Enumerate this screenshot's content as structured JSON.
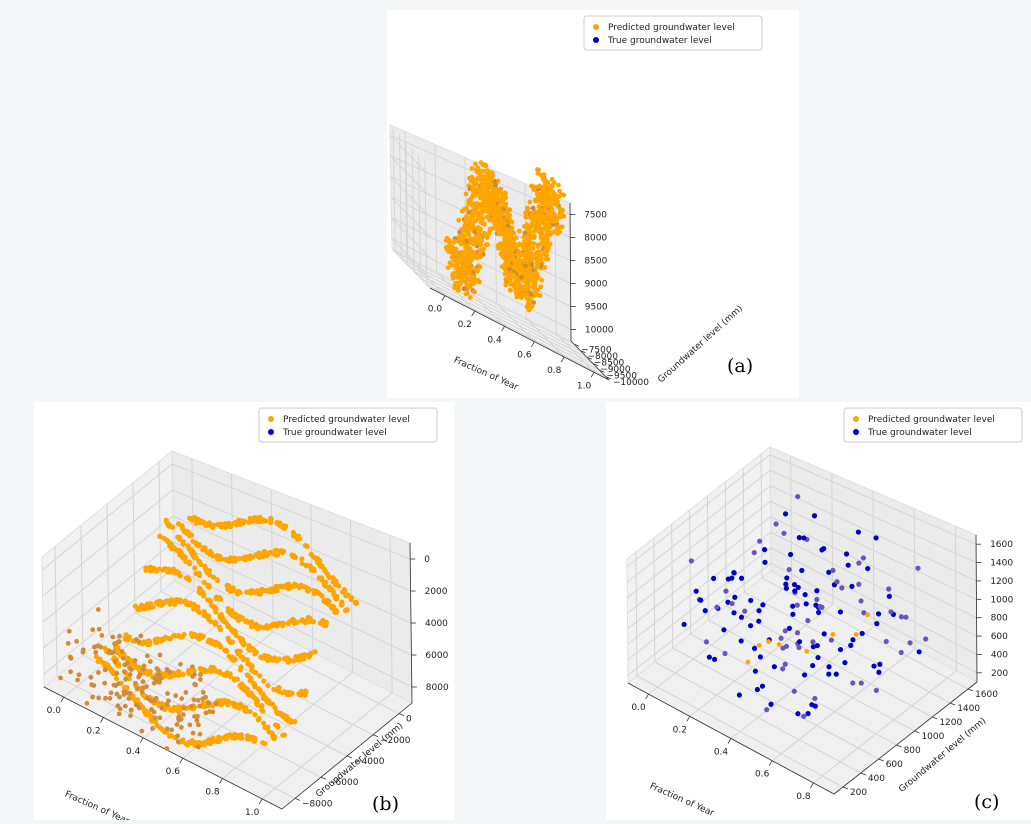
{
  "chart_data": [
    {
      "type": "scatter",
      "label": "(a)",
      "xlabel": "Fraction of Year",
      "ylabel": "Groundwater level (mm)",
      "x_ticks": [
        "0.0",
        "0.2",
        "0.4",
        "0.6",
        "0.8",
        "1.0"
      ],
      "y_ticks": [
        "−10000",
        "−9500",
        "−9000",
        "−8500",
        "−8000",
        "−7500"
      ],
      "z_ticks": [
        "10000",
        "9500",
        "9000",
        "8500",
        "8000",
        "7500"
      ],
      "legend_position": "top-right",
      "series": [
        {
          "name": "Predicted groundwater level",
          "color": "#FFA500",
          "shape": "dense continuous band between depths -10000 and -7500 across x 0.0-1.0"
        },
        {
          "name": "True groundwater level",
          "color": "#0000CD"
        }
      ],
      "ylim": [
        -10000,
        -7500
      ],
      "zlim": [
        -10000,
        -7500
      ]
    },
    {
      "type": "scatter",
      "label": "(b)",
      "xlabel": "Fraction of Year",
      "ylabel": "Groundwater level (mm)",
      "x_ticks": [
        "0.0",
        "0.2",
        "0.4",
        "0.6",
        "0.8",
        "1.0"
      ],
      "y_ticks": [
        "−8000",
        "−6000",
        "−4000",
        "−2000",
        "0"
      ],
      "z_ticks": [
        "8000",
        "6000",
        "4000",
        "2000",
        "0"
      ],
      "legend_position": "top-right",
      "series": [
        {
          "name": "Predicted groundwater level",
          "color": "#FFA500",
          "shape": "layered bands of points between depths -8000 and 0 across x 0.0-1.0"
        },
        {
          "name": "True groundwater level",
          "color": "#0000CD"
        }
      ],
      "ylim": [
        -8000,
        0
      ],
      "zlim": [
        -8000,
        0
      ]
    },
    {
      "type": "scatter",
      "label": "(c)",
      "xlabel": "Fraction of Year",
      "ylabel": "Groundwater level (mm)",
      "x_ticks": [
        "0.0",
        "0.2",
        "0.4",
        "0.6",
        "0.8"
      ],
      "y_ticks": [
        "200",
        "400",
        "600",
        "800",
        "1000",
        "1200",
        "1400",
        "1600"
      ],
      "z_ticks": [
        "200",
        "400",
        "600",
        "800",
        "1000",
        "1200",
        "1400",
        "1600"
      ],
      "legend_position": "top-right",
      "series": [
        {
          "name": "Predicted groundwater level",
          "color": "#FFA500",
          "shape": "sparse points mostly hidden behind true points"
        },
        {
          "name": "True groundwater level",
          "color": "#0000CD",
          "shape": "sparse grid of points levels 200-1600"
        }
      ],
      "ylim": [
        200,
        1600
      ],
      "zlim": [
        200,
        1600
      ]
    }
  ]
}
